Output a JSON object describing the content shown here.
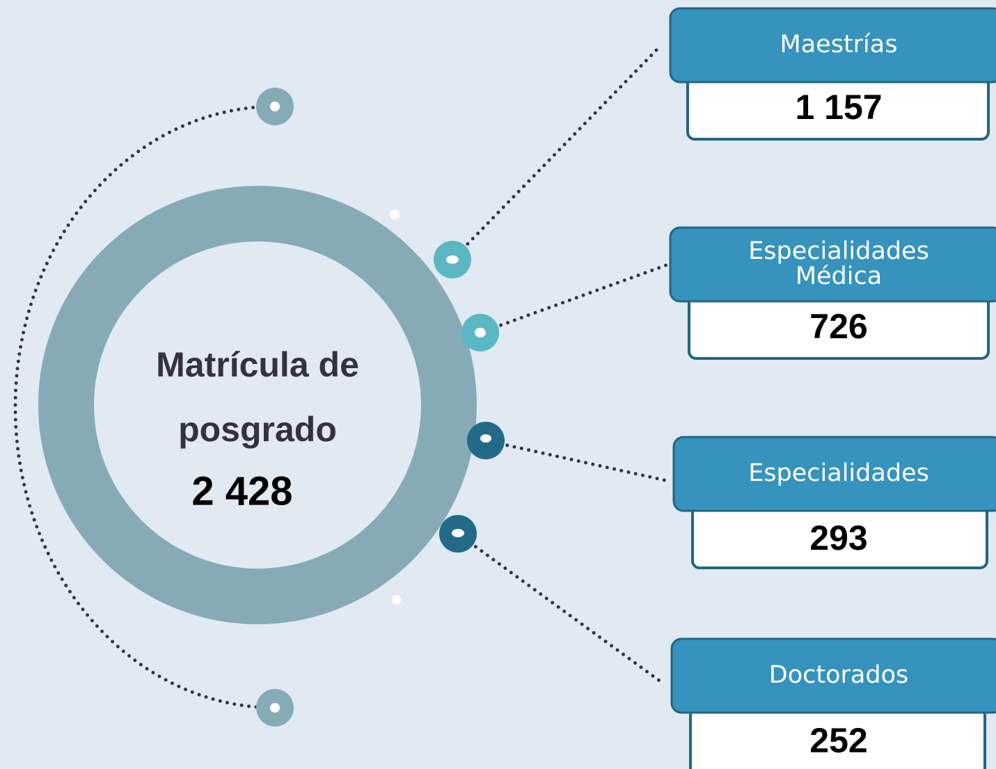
{
  "center": {
    "title_lines": [
      "Matrícula de",
      "posgrado"
    ],
    "total": "2 428"
  },
  "items": [
    {
      "label_lines": [
        "Maestrías"
      ],
      "value": "1 157"
    },
    {
      "label_lines": [
        "Especialidades",
        "Médica"
      ],
      "value": "726"
    },
    {
      "label_lines": [
        "Especialidades"
      ],
      "value": "293"
    },
    {
      "label_lines": [
        "Doctorados"
      ],
      "value": "252"
    }
  ]
}
